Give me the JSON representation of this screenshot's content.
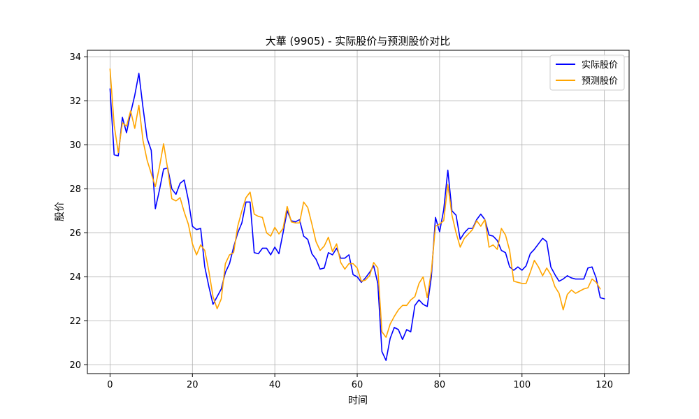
{
  "chart_data": {
    "type": "line",
    "title": "大華 (9905) - 实际股价与预测股价对比",
    "xlabel": "时间",
    "ylabel": "股价",
    "xlim": [
      -5.5,
      126
    ],
    "ylim": [
      19.6,
      34.3
    ],
    "xticks": [
      0,
      20,
      40,
      60,
      80,
      100,
      120
    ],
    "yticks": [
      20,
      22,
      24,
      26,
      28,
      30,
      32,
      34
    ],
    "grid": true,
    "legend_position": "top-right",
    "series": [
      {
        "name": "实际股价",
        "color": "#0000ff",
        "x": [
          0,
          1,
          2,
          3,
          4,
          5,
          6,
          7,
          8,
          9,
          10,
          11,
          12,
          13,
          14,
          15,
          16,
          17,
          18,
          19,
          20,
          21,
          22,
          23,
          24,
          25,
          26,
          27,
          28,
          29,
          30,
          31,
          32,
          33,
          34,
          35,
          36,
          37,
          38,
          39,
          40,
          41,
          42,
          43,
          44,
          45,
          46,
          47,
          48,
          49,
          50,
          51,
          52,
          53,
          54,
          55,
          56,
          57,
          58,
          59,
          60,
          61,
          62,
          63,
          64,
          65,
          66,
          67,
          68,
          69,
          70,
          71,
          72,
          73,
          74,
          75,
          76,
          77,
          78,
          79,
          80,
          81,
          82,
          83,
          84,
          85,
          86,
          87,
          88,
          89,
          90,
          91,
          92,
          93,
          94,
          95,
          96,
          97,
          98,
          99,
          100,
          101,
          102,
          103,
          104,
          105,
          106,
          107,
          108,
          109,
          110,
          111,
          112,
          113,
          114,
          115,
          116,
          117,
          118,
          119,
          120
        ],
        "values": [
          32.55,
          29.55,
          29.5,
          31.25,
          30.55,
          31.45,
          32.25,
          33.25,
          31.7,
          30.3,
          29.75,
          27.1,
          27.95,
          28.9,
          28.95,
          28.0,
          27.75,
          28.25,
          28.4,
          27.5,
          26.3,
          26.15,
          26.2,
          24.45,
          23.55,
          22.75,
          23.1,
          23.45,
          24.2,
          24.6,
          25.35,
          26.0,
          26.45,
          27.4,
          27.4,
          25.1,
          25.05,
          25.3,
          25.3,
          25.0,
          25.35,
          25.05,
          26.0,
          27.0,
          26.55,
          26.5,
          26.6,
          25.85,
          25.7,
          25.05,
          24.8,
          24.35,
          24.4,
          25.1,
          25.0,
          25.3,
          24.85,
          24.85,
          25.0,
          24.1,
          24.0,
          23.75,
          23.95,
          24.2,
          24.5,
          23.7,
          20.6,
          20.2,
          21.2,
          21.7,
          21.6,
          21.15,
          21.6,
          21.5,
          22.7,
          22.95,
          22.75,
          22.65,
          24.0,
          26.7,
          26.05,
          27.05,
          28.85,
          27.0,
          26.8,
          25.7,
          26.0,
          26.2,
          26.2,
          26.6,
          26.85,
          26.6,
          25.9,
          25.85,
          25.65,
          25.2,
          25.1,
          24.45,
          24.3,
          24.45,
          24.3,
          24.5,
          25.05,
          25.25,
          25.5,
          25.75,
          25.6,
          24.45,
          24.1,
          23.8,
          23.9,
          24.05,
          23.95,
          23.9,
          23.9,
          23.9,
          24.4,
          24.45,
          23.95,
          23.05,
          23.0
        ]
      },
      {
        "name": "预测股价",
        "color": "#ffa500",
        "x": [
          0,
          1,
          2,
          3,
          4,
          5,
          6,
          7,
          8,
          9,
          10,
          11,
          12,
          13,
          14,
          15,
          16,
          17,
          18,
          19,
          20,
          21,
          22,
          23,
          24,
          25,
          26,
          27,
          28,
          29,
          30,
          31,
          32,
          33,
          34,
          35,
          36,
          37,
          38,
          39,
          40,
          41,
          42,
          43,
          44,
          45,
          46,
          47,
          48,
          49,
          50,
          51,
          52,
          53,
          54,
          55,
          56,
          57,
          58,
          59,
          60,
          61,
          62,
          63,
          64,
          65,
          66,
          67,
          68,
          69,
          70,
          71,
          72,
          73,
          74,
          75,
          76,
          77,
          78,
          79,
          80,
          81,
          82,
          83,
          84,
          85,
          86,
          87,
          88,
          89,
          90,
          91,
          92,
          93,
          94,
          95,
          96,
          97,
          98,
          99,
          100,
          101,
          102,
          103,
          104,
          105,
          106,
          107,
          108,
          109,
          110,
          111,
          112,
          113,
          114,
          115,
          116,
          117,
          118,
          119
        ],
        "values": [
          33.45,
          30.9,
          29.65,
          31.0,
          30.85,
          31.55,
          30.75,
          31.8,
          30.2,
          29.3,
          28.7,
          28.1,
          29.0,
          30.05,
          28.9,
          27.55,
          27.45,
          27.6,
          26.95,
          26.4,
          25.5,
          25.0,
          25.45,
          25.2,
          24.25,
          23.1,
          22.55,
          23.0,
          24.6,
          25.0,
          25.1,
          26.3,
          27.0,
          27.6,
          27.85,
          26.85,
          26.75,
          26.7,
          26.0,
          25.85,
          26.25,
          25.95,
          26.2,
          27.2,
          26.5,
          26.45,
          26.45,
          27.4,
          27.15,
          26.4,
          25.6,
          25.2,
          25.4,
          25.8,
          25.15,
          25.5,
          24.65,
          24.35,
          24.6,
          24.6,
          24.4,
          23.8,
          23.85,
          24.05,
          24.65,
          24.4,
          21.5,
          21.25,
          21.85,
          22.2,
          22.5,
          22.7,
          22.7,
          22.95,
          23.1,
          23.7,
          24.0,
          23.05,
          24.25,
          26.3,
          26.4,
          26.55,
          28.2,
          26.8,
          26.0,
          25.35,
          25.75,
          25.95,
          26.15,
          26.55,
          26.3,
          26.6,
          25.35,
          25.45,
          25.25,
          26.2,
          25.9,
          25.2,
          23.8,
          23.75,
          23.7,
          23.7,
          24.2,
          24.75,
          24.45,
          24.05,
          24.4,
          24.1,
          23.55,
          23.25,
          22.5,
          23.2,
          23.4,
          23.25,
          23.35,
          23.45,
          23.5,
          23.9,
          23.75,
          23.45
        ]
      }
    ]
  }
}
